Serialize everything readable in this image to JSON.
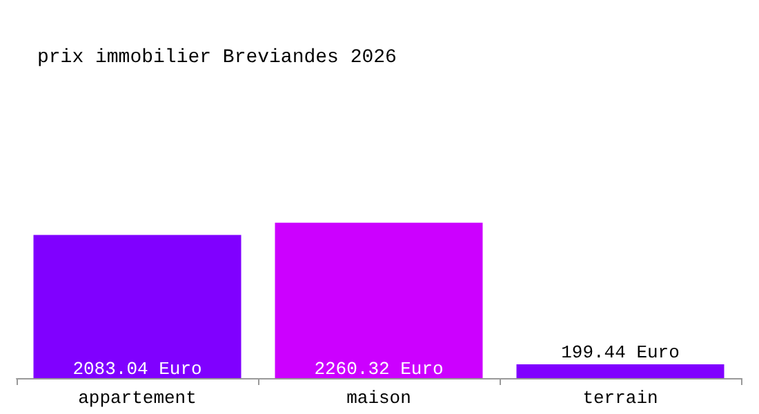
{
  "chart_data": {
    "type": "bar",
    "title": "prix immobilier Breviandes 2026",
    "categories": [
      "appartement",
      "maison",
      "terrain"
    ],
    "values": [
      2083.04,
      2260.32,
      199.44
    ],
    "value_labels": [
      "2083.04 Euro",
      "2260.32 Euro",
      "199.44 Euro"
    ],
    "colors": [
      "#8000ff",
      "#cc00ff",
      "#8000ff"
    ]
  }
}
